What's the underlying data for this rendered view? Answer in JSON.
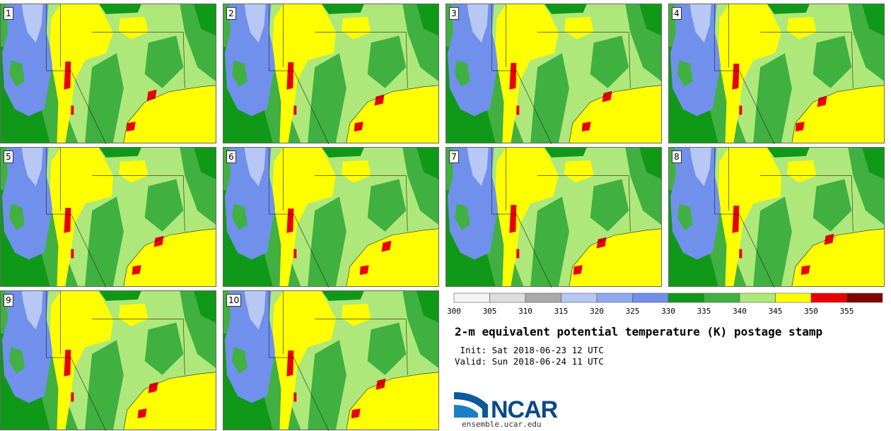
{
  "panels": [
    {
      "label": "1"
    },
    {
      "label": "2"
    },
    {
      "label": "3"
    },
    {
      "label": "4"
    },
    {
      "label": "5"
    },
    {
      "label": "6"
    },
    {
      "label": "7"
    },
    {
      "label": "8"
    },
    {
      "label": "9"
    },
    {
      "label": "10"
    }
  ],
  "colorbar": {
    "ticks": [
      "300",
      "305",
      "310",
      "315",
      "320",
      "325",
      "330",
      "335",
      "340",
      "345",
      "350",
      "355"
    ],
    "colors": [
      "#f4f4f4",
      "#dddddd",
      "#aaaaaa",
      "#b8c8f4",
      "#8fa8f0",
      "#7090ec",
      "#109818",
      "#40b040",
      "#aee87a",
      "#ffff00",
      "#e80000",
      "#800000"
    ]
  },
  "map_colors": {
    "land_base": "#aee87a",
    "mid_green": "#40b040",
    "dark_green": "#109818",
    "blue": "#7090ec",
    "light_blue": "#b8c8f4",
    "yellow": "#ffff00",
    "red": "#e80000"
  },
  "title": "2-m equivalent potential temperature (K) postage stamp",
  "init": " Init: Sat 2018-06-23 12 UTC",
  "valid": "Valid: Sun 2018-06-24 11 UTC",
  "logo": {
    "text": "NCAR",
    "url": "ensemble.ucar.edu"
  }
}
